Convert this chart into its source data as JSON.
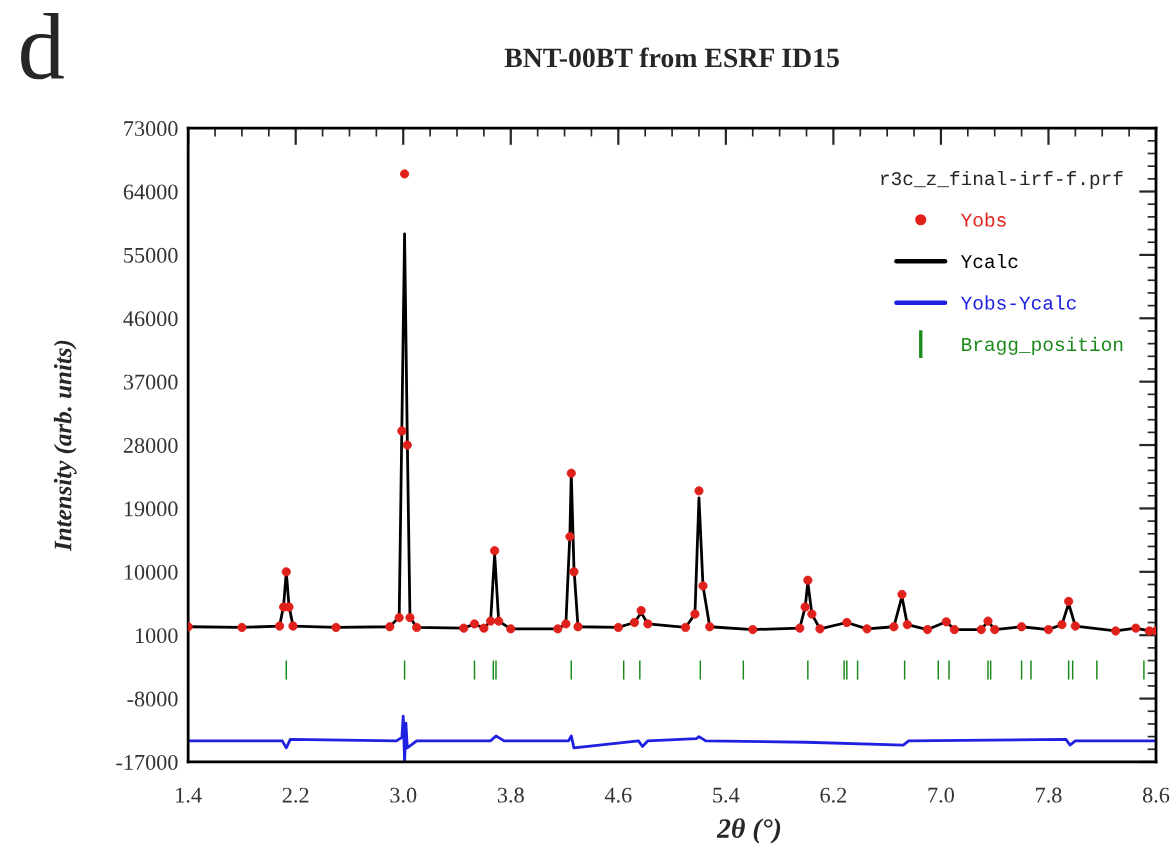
{
  "chart_data": {
    "type": "line",
    "title": "BNT-00BT from ESRF ID15",
    "xlabel": "2θ (°)",
    "ylabel": "Intensity (arb. units)",
    "legend_title": "r3c_z_final-irf-f.prf",
    "annotations": [
      "d"
    ],
    "xlim": [
      1.4,
      8.6
    ],
    "xticks": [
      1.4,
      2.2,
      {
        "value": 3,
        "label": "3.0"
      },
      3.8,
      4.6,
      5.4,
      6.2,
      {
        "value": 7,
        "label": "7.0"
      },
      7.8,
      8.6
    ],
    "ylim": [
      -17000,
      73000
    ],
    "yticks": [
      -17000,
      -8000,
      1000,
      10000,
      19000,
      28000,
      37000,
      46000,
      55000,
      64000,
      73000
    ],
    "grid": false,
    "legend": "top right",
    "series": [
      {
        "name": "Yobs",
        "type": "scatter",
        "marker": "circle",
        "color": "#e0201b",
        "x": [
          1.4,
          1.8,
          2.08,
          2.11,
          2.13,
          2.15,
          2.18,
          2.5,
          2.9,
          2.97,
          2.99,
          3.01,
          3.03,
          3.05,
          3.1,
          3.45,
          3.53,
          3.6,
          3.65,
          3.68,
          3.71,
          3.8,
          4.15,
          4.21,
          4.24,
          4.25,
          4.27,
          4.3,
          4.6,
          4.72,
          4.77,
          4.82,
          5.1,
          5.17,
          5.2,
          5.23,
          5.28,
          5.6,
          5.95,
          5.99,
          6.01,
          6.04,
          6.1,
          6.3,
          6.45,
          6.65,
          6.71,
          6.75,
          6.9,
          7.04,
          7.1,
          7.3,
          7.35,
          7.4,
          7.6,
          7.8,
          7.9,
          7.95,
          8.0,
          8.3,
          8.45,
          8.55,
          8.6
        ],
        "values": [
          2200,
          2100,
          2300,
          5000,
          10000,
          5000,
          2300,
          2100,
          2200,
          3500,
          30000,
          66500,
          28000,
          3500,
          2100,
          2000,
          2600,
          2000,
          3000,
          13000,
          3000,
          1900,
          1900,
          2600,
          15000,
          24000,
          10000,
          2200,
          2100,
          2800,
          4500,
          2600,
          2100,
          4000,
          21500,
          8000,
          2200,
          1800,
          2000,
          5000,
          8800,
          4000,
          1900,
          2800,
          1900,
          2200,
          6800,
          2500,
          1800,
          2900,
          1800,
          1800,
          3000,
          1800,
          2200,
          1800,
          2500,
          5800,
          2300,
          1600,
          2000,
          1600,
          1600
        ]
      },
      {
        "name": "Ycalc",
        "color": "#000000",
        "x": [
          1.4,
          1.8,
          2.08,
          2.11,
          2.13,
          2.15,
          2.18,
          2.5,
          2.9,
          2.97,
          2.99,
          3.01,
          3.03,
          3.05,
          3.1,
          3.45,
          3.53,
          3.6,
          3.65,
          3.68,
          3.71,
          3.8,
          4.15,
          4.21,
          4.24,
          4.25,
          4.27,
          4.3,
          4.6,
          4.72,
          4.77,
          4.82,
          5.1,
          5.17,
          5.2,
          5.23,
          5.28,
          5.6,
          5.95,
          5.99,
          6.01,
          6.04,
          6.1,
          6.3,
          6.45,
          6.65,
          6.71,
          6.75,
          6.9,
          7.04,
          7.1,
          7.3,
          7.35,
          7.4,
          7.6,
          7.8,
          7.9,
          7.95,
          8.0,
          8.3,
          8.45,
          8.55,
          8.6
        ],
        "values": [
          2200,
          2100,
          2300,
          5200,
          10000,
          5200,
          2300,
          2100,
          2200,
          3600,
          31000,
          58000,
          29000,
          3600,
          2100,
          2000,
          2600,
          2000,
          3000,
          12500,
          3000,
          1900,
          1900,
          2600,
          15500,
          24000,
          10500,
          2200,
          2100,
          2800,
          4200,
          2600,
          2100,
          4000,
          20500,
          8000,
          2200,
          1800,
          2000,
          5000,
          8500,
          4000,
          1900,
          2800,
          1900,
          2200,
          6500,
          2500,
          1800,
          2900,
          1800,
          1800,
          3000,
          1800,
          2200,
          1800,
          2500,
          5500,
          2300,
          1600,
          2000,
          1600,
          1600
        ]
      },
      {
        "name": "Yobs-Ycalc",
        "color": "#2020e0",
        "x": [
          1.4,
          2.1,
          2.13,
          2.16,
          2.95,
          2.99,
          3.0,
          3.01,
          3.02,
          3.03,
          3.1,
          3.65,
          3.69,
          3.75,
          4.23,
          4.25,
          4.27,
          4.75,
          4.78,
          4.82,
          5.18,
          5.2,
          5.25,
          6.0,
          6.72,
          6.76,
          7.93,
          7.96,
          8.0,
          8.6
        ],
        "values": [
          -14000,
          -14000,
          -15000,
          -13800,
          -14000,
          -13500,
          -10500,
          -17000,
          -11500,
          -15000,
          -14000,
          -14000,
          -13300,
          -14000,
          -14000,
          -13300,
          -15000,
          -14000,
          -14800,
          -14000,
          -13700,
          -13400,
          -14000,
          -14200,
          -14600,
          -14000,
          -13800,
          -14600,
          -14000,
          -14000
        ]
      },
      {
        "name": "Bragg_position",
        "type": "bar",
        "color": "#1a8a1a",
        "x": [
          2.13,
          3.01,
          3.53,
          3.67,
          3.69,
          4.25,
          4.64,
          4.76,
          5.21,
          5.53,
          6.01,
          6.28,
          6.3,
          6.38,
          6.73,
          6.98,
          7.06,
          7.35,
          7.37,
          7.6,
          7.67,
          7.95,
          7.98,
          8.16,
          8.51
        ],
        "values": [
          2700,
          2700,
          2700,
          2700,
          2700,
          2700,
          2700,
          2700,
          2700,
          2700,
          2700,
          2700,
          2700,
          2700,
          2700,
          2700,
          2700,
          2700,
          2700,
          2700,
          2700,
          2700,
          2700,
          2700,
          2700
        ],
        "base": [
          -5300,
          -5300,
          -5300,
          -5300,
          -5300,
          -5300,
          -5300,
          -5300,
          -5300,
          -5300,
          -5300,
          -5300,
          -5300,
          -5300,
          -5300,
          -5300,
          -5300,
          -5300,
          -5300,
          -5300,
          -5300,
          -5300,
          -5300,
          -5300,
          -5300
        ]
      }
    ]
  }
}
